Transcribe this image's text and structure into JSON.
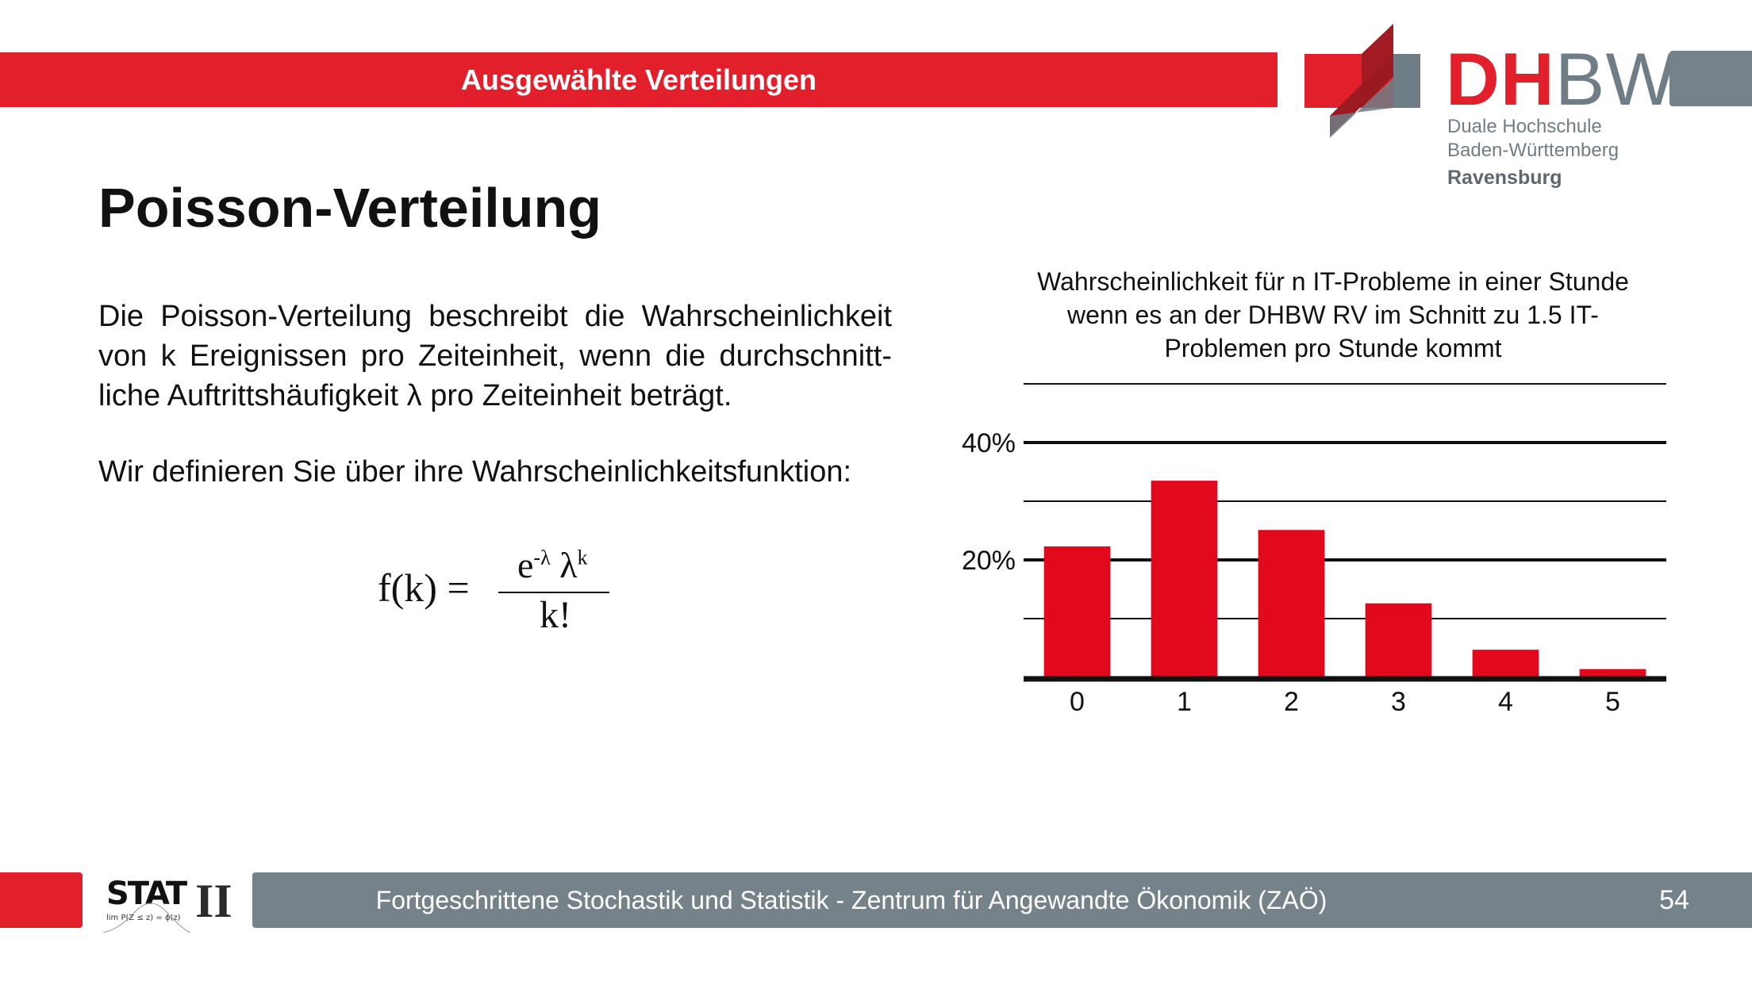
{
  "header": {
    "title": "Ausgewählte Verteilungen"
  },
  "logo": {
    "word_red": "DH",
    "word_gray": "BW",
    "sub1": "Duale Hochschule",
    "sub2": "Baden-Württemberg",
    "sub3": "Ravensburg",
    "colors": {
      "red": "#e2202c",
      "dark_red": "#9b1b22",
      "gray": "#76828a"
    }
  },
  "slide": {
    "title": "Poisson-Verteilung",
    "description": "Die Poisson-Verteilung beschreibt die Wahrscheinlichkeit von k Ereignissen pro Zeiteinheit, wenn die durchschnitt­liche Auftrittshäufigkeit λ pro Zeiteinheit beträgt.",
    "description2": "Wir definieren Sie über ihre Wahrscheinlichkeitsfunktion:",
    "formula": {
      "lhs": "f(k) =",
      "numerator": "e",
      "exp_lambda": "-λ",
      "lambda": "λ",
      "exp_k": "k",
      "denominator": "k!"
    }
  },
  "chart_data": {
    "type": "bar",
    "title": "Wahrscheinlichkeit für n IT-Probleme in einer Stunde wenn es  an der DHBW RV im Schnitt zu 1.5 IT-Problemen pro Stunde kommt",
    "categories": [
      "0",
      "1",
      "2",
      "3",
      "4",
      "5"
    ],
    "values": [
      22.3,
      33.5,
      25.1,
      12.6,
      4.7,
      1.4
    ],
    "unit": "%",
    "ylim": [
      0,
      50
    ],
    "yticks": [
      10,
      20,
      30,
      40,
      50
    ],
    "ytick_labels": [
      "",
      "20%",
      "",
      "40%",
      ""
    ],
    "grid": true,
    "bar_color": "#e2091d"
  },
  "footer": {
    "course": "Fortgeschrittene Stochastik und Statistik - Zentrum für Angewandte Ökonomik (ZAÖ)",
    "page_number": "54",
    "stat_logo_text": "STAT",
    "stat_logo_numeral": "II",
    "stat_logo_formula": "lim P(Z  ≤ z) = ϕ(z)"
  }
}
